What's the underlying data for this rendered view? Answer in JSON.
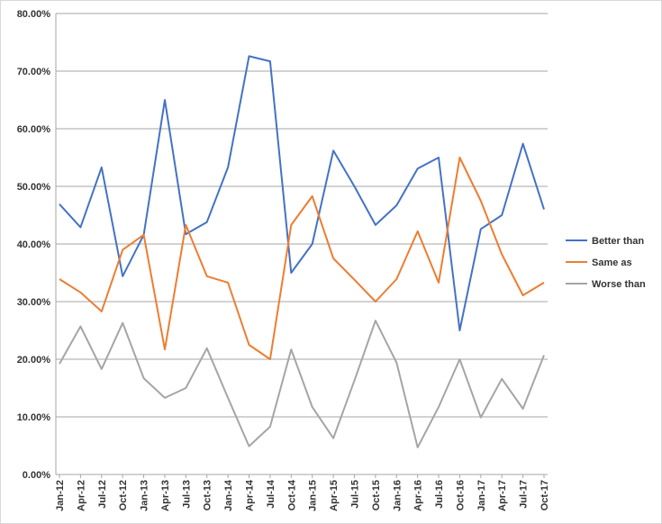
{
  "chart_data": {
    "type": "line",
    "title": "",
    "xlabel": "",
    "ylabel": "",
    "ylim": [
      0,
      80
    ],
    "yticks": [
      "0.00%",
      "10.00%",
      "20.00%",
      "30.00%",
      "40.00%",
      "50.00%",
      "60.00%",
      "70.00%",
      "80.00%"
    ],
    "grid": "horizontal",
    "legend_position": "right",
    "categories": [
      "Jan-12",
      "Apr-12",
      "Jul-12",
      "Oct-12",
      "Jan-13",
      "Apr-13",
      "Jul-13",
      "Oct-13",
      "Jan-14",
      "Apr-14",
      "Jul-14",
      "Oct-14",
      "Jan-15",
      "Apr-15",
      "Jul-15",
      "Oct-15",
      "Jan-16",
      "Apr-16",
      "Jul-16",
      "Oct-16",
      "Jan-17",
      "Apr-17",
      "Jul-17",
      "Oct-17"
    ],
    "series": [
      {
        "name": "Better than",
        "color": "#4472C4",
        "values": [
          46.9,
          42.9,
          53.3,
          34.4,
          41.6,
          65.0,
          41.7,
          43.8,
          53.3,
          72.6,
          71.7,
          35.0,
          40.0,
          56.2,
          50.0,
          43.3,
          46.7,
          53.1,
          55.0,
          25.0,
          42.6,
          45.0,
          57.4,
          46.0
        ]
      },
      {
        "name": "Same as",
        "color": "#ED7D31",
        "values": [
          33.9,
          31.6,
          28.3,
          39.0,
          41.6,
          21.7,
          43.3,
          34.4,
          33.3,
          22.5,
          20.0,
          43.3,
          48.3,
          37.5,
          33.8,
          30.0,
          33.9,
          42.2,
          33.3,
          55.0,
          47.5,
          38.2,
          31.1,
          33.3
        ]
      },
      {
        "name": "Worse than",
        "color": "#A5A5A5",
        "values": [
          19.2,
          25.7,
          18.3,
          26.3,
          16.7,
          13.3,
          15.0,
          21.9,
          13.3,
          4.9,
          8.3,
          21.7,
          11.7,
          6.3,
          16.3,
          26.7,
          19.4,
          4.7,
          11.7,
          20.0,
          9.9,
          16.6,
          11.4,
          20.7
        ]
      }
    ]
  }
}
